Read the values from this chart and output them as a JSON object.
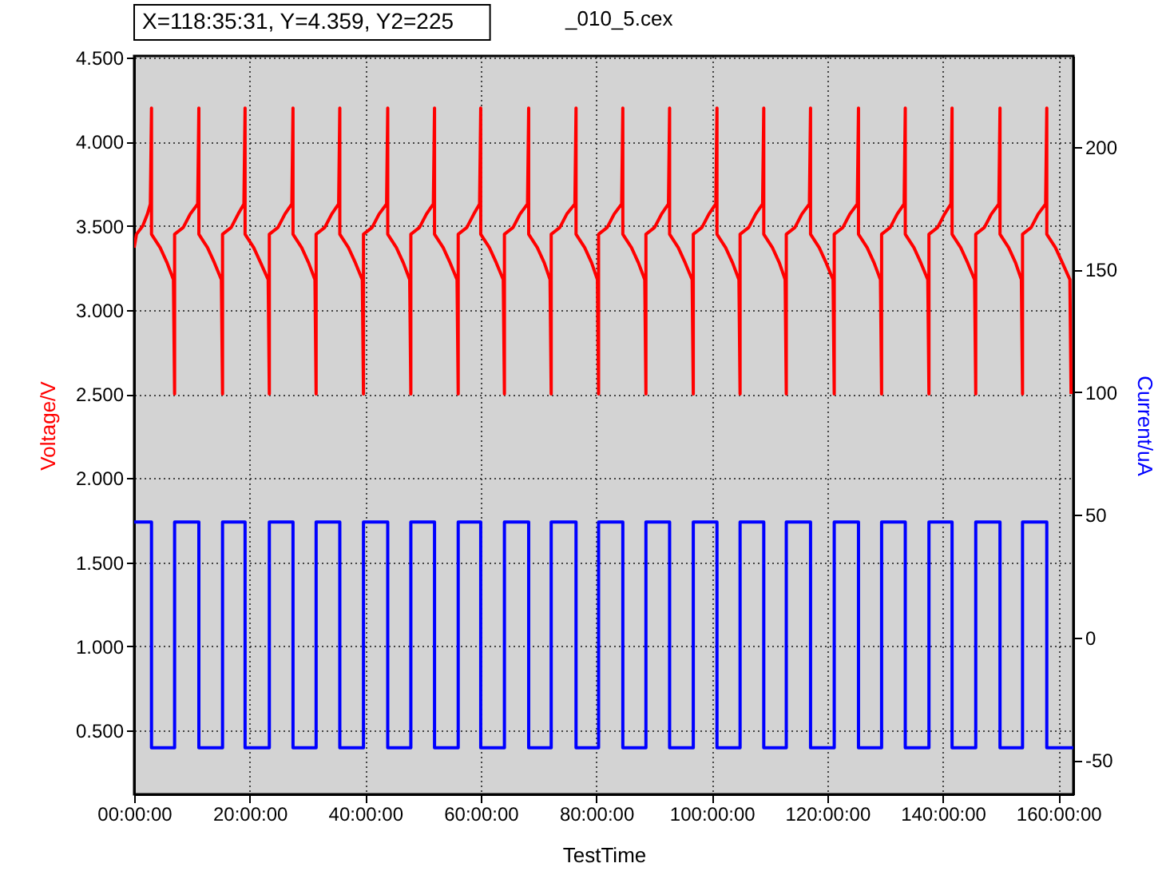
{
  "chart_data": {
    "type": "line",
    "title": "X=118:35:31, Y=4.359, Y2=225",
    "subtitle": "_010_5.cex",
    "xlabel": "TestTime",
    "ylabel": "Voltage/V",
    "y2label": "Current/uA",
    "xlim": [
      0,
      162.6
    ],
    "xticks": [
      {
        "value": 0,
        "label": "00:00:00"
      },
      {
        "value": 20,
        "label": "20:00:00"
      },
      {
        "value": 40,
        "label": "40:00:00"
      },
      {
        "value": 60,
        "label": "60:00:00"
      },
      {
        "value": 80,
        "label": "80:00:00"
      },
      {
        "value": 100,
        "label": "100:00:00"
      },
      {
        "value": 120,
        "label": "120:00:00"
      },
      {
        "value": 140,
        "label": "140:00:00"
      },
      {
        "value": 160,
        "label": "160:00:00"
      }
    ],
    "ylim": [
      0.12,
      4.51
    ],
    "yticks": [
      {
        "value": 0.5,
        "label": "0.500"
      },
      {
        "value": 1.0,
        "label": "1.000"
      },
      {
        "value": 1.5,
        "label": "1.500"
      },
      {
        "value": 2.0,
        "label": "2.000"
      },
      {
        "value": 2.5,
        "label": "2.500"
      },
      {
        "value": 3.0,
        "label": "3.000"
      },
      {
        "value": 3.5,
        "label": "3.500"
      },
      {
        "value": 4.0,
        "label": "4.000"
      },
      {
        "value": 4.5,
        "label": "4.500"
      }
    ],
    "y2lim": [
      -64,
      237
    ],
    "y2ticks": [
      -50,
      0,
      50,
      100,
      150,
      200
    ],
    "grid": true,
    "line_style": "solid",
    "marker": "none",
    "series": [
      {
        "type": "line",
        "color": "#ff0000",
        "x": [
          0,
          0.4,
          1.5,
          2.3,
          2.8,
          3.0,
          3.0,
          4.5,
          5.7,
          6.8,
          7.0,
          7.0,
          8.5,
          9.7,
          11.0,
          11.2,
          11.2,
          12.7,
          13.9,
          15.1,
          15.3,
          15.3,
          16.8,
          18.0,
          19.0,
          19.2,
          19.2,
          20.7,
          21.9,
          23.2,
          23.4,
          23.4,
          24.9,
          26.1,
          27.3,
          27.5,
          27.5,
          29.0,
          30.2,
          31.3,
          31.5,
          31.5,
          33.0,
          34.2,
          35.4,
          35.6,
          35.6,
          37.1,
          38.3,
          39.5,
          39.7,
          39.7,
          41.2,
          42.4,
          43.7,
          43.9,
          43.9,
          45.4,
          46.6,
          47.7,
          47.9,
          47.9,
          49.4,
          50.6,
          51.8,
          52.0,
          52.0,
          53.5,
          54.7,
          55.9,
          56.1,
          56.1,
          57.6,
          58.8,
          59.8,
          60.0,
          60.0,
          61.5,
          62.7,
          63.9,
          64.1,
          64.1,
          65.6,
          66.8,
          68.1,
          68.3,
          68.3,
          69.8,
          71.0,
          72.0,
          72.2,
          72.2,
          73.7,
          74.9,
          76.3,
          76.5,
          76.5,
          78.0,
          79.2,
          80.2,
          80.4,
          80.4,
          81.9,
          83.1,
          84.4,
          84.6,
          84.6,
          86.1,
          87.3,
          88.4,
          88.6,
          88.6,
          90.1,
          91.3,
          92.5,
          92.7,
          92.7,
          94.2,
          95.4,
          96.6,
          96.8,
          96.8,
          98.3,
          99.5,
          100.7,
          100.9,
          100.9,
          102.4,
          103.6,
          104.7,
          104.9,
          104.9,
          106.4,
          107.6,
          108.8,
          109.0,
          109.0,
          110.5,
          111.7,
          112.7,
          112.9,
          112.9,
          114.4,
          115.6,
          116.9,
          117.1,
          117.1,
          118.6,
          119.8,
          121.0,
          121.2,
          121.2,
          122.7,
          123.9,
          125.2,
          125.4,
          125.4,
          126.9,
          128.1,
          129.2,
          129.4,
          129.4,
          130.9,
          132.1,
          133.3,
          133.5,
          133.5,
          135.0,
          136.2,
          137.4,
          137.6,
          137.6,
          139.1,
          140.3,
          141.4,
          141.6,
          141.6,
          143.1,
          144.3,
          145.5,
          145.7,
          145.7,
          147.2,
          148.4,
          149.7,
          149.9,
          149.9,
          151.4,
          152.6,
          153.6,
          153.8,
          153.8,
          155.3,
          156.5,
          157.8,
          158.0,
          158.0,
          159.5,
          160.7,
          162.0,
          162.2
        ],
        "values": [
          3.37,
          3.45,
          3.5,
          3.57,
          3.63,
          4.2,
          3.45,
          3.37,
          3.28,
          3.18,
          2.5,
          3.45,
          3.49,
          3.57,
          3.63,
          4.2,
          3.45,
          3.37,
          3.28,
          3.18,
          2.5,
          3.45,
          3.49,
          3.57,
          3.63,
          4.2,
          3.45,
          3.37,
          3.28,
          3.18,
          2.5,
          3.45,
          3.49,
          3.57,
          3.63,
          4.2,
          3.45,
          3.37,
          3.28,
          3.18,
          2.5,
          3.45,
          3.49,
          3.57,
          3.63,
          4.2,
          3.45,
          3.37,
          3.28,
          3.18,
          2.5,
          3.45,
          3.49,
          3.57,
          3.63,
          4.2,
          3.45,
          3.37,
          3.28,
          3.18,
          2.5,
          3.45,
          3.49,
          3.57,
          3.63,
          4.2,
          3.45,
          3.37,
          3.28,
          3.18,
          2.5,
          3.45,
          3.49,
          3.57,
          3.63,
          4.2,
          3.45,
          3.37,
          3.28,
          3.18,
          2.5,
          3.45,
          3.49,
          3.57,
          3.63,
          4.2,
          3.45,
          3.37,
          3.28,
          3.18,
          2.5,
          3.45,
          3.49,
          3.57,
          3.63,
          4.2,
          3.45,
          3.37,
          3.28,
          3.18,
          2.5,
          3.45,
          3.49,
          3.57,
          3.63,
          4.2,
          3.45,
          3.37,
          3.28,
          3.18,
          2.5,
          3.45,
          3.49,
          3.57,
          3.63,
          4.2,
          3.45,
          3.37,
          3.28,
          3.18,
          2.5,
          3.45,
          3.49,
          3.57,
          3.63,
          4.2,
          3.45,
          3.37,
          3.28,
          3.18,
          2.5,
          3.45,
          3.49,
          3.57,
          3.63,
          4.2,
          3.45,
          3.37,
          3.28,
          3.18,
          2.5,
          3.45,
          3.49,
          3.57,
          3.63,
          4.2,
          3.45,
          3.37,
          3.28,
          3.18,
          2.5,
          3.45,
          3.49,
          3.57,
          3.63,
          4.2,
          3.45,
          3.37,
          3.28,
          3.18,
          2.5,
          3.45,
          3.49,
          3.57,
          3.63,
          4.2,
          3.45,
          3.37,
          3.28,
          3.18,
          2.5,
          3.45,
          3.49,
          3.57,
          3.63,
          4.2,
          3.45,
          3.37,
          3.28,
          3.18,
          2.5,
          3.45,
          3.49,
          3.57,
          3.63,
          4.2,
          3.45,
          3.37,
          3.28,
          3.18,
          2.5,
          3.45,
          3.49,
          3.57,
          3.63,
          4.2,
          3.45,
          3.37,
          3.28,
          3.18,
          2.5
        ]
      },
      {
        "type": "step",
        "axis": "y2",
        "color": "#0000ff",
        "x": [
          0,
          3.0,
          7.0,
          11.2,
          15.3,
          19.2,
          23.4,
          27.5,
          31.5,
          35.6,
          39.7,
          43.9,
          47.9,
          52.0,
          56.1,
          60.0,
          64.1,
          68.3,
          72.2,
          76.5,
          80.4,
          84.6,
          88.6,
          92.7,
          96.8,
          100.9,
          104.9,
          109.0,
          112.9,
          117.1,
          121.2,
          125.4,
          129.4,
          133.5,
          137.6,
          141.6,
          145.7,
          149.9,
          153.8,
          158.0,
          162.6
        ],
        "values": [
          47,
          -45,
          47,
          -45,
          47,
          -45,
          47,
          -45,
          47,
          -45,
          47,
          -45,
          47,
          -45,
          47,
          -45,
          47,
          -45,
          47,
          -45,
          47,
          -45,
          47,
          -45,
          47,
          -45,
          47,
          -45,
          47,
          -45,
          47,
          -45,
          47,
          -45,
          47,
          -45,
          47,
          -45,
          47,
          -45,
          -45
        ]
      }
    ]
  }
}
